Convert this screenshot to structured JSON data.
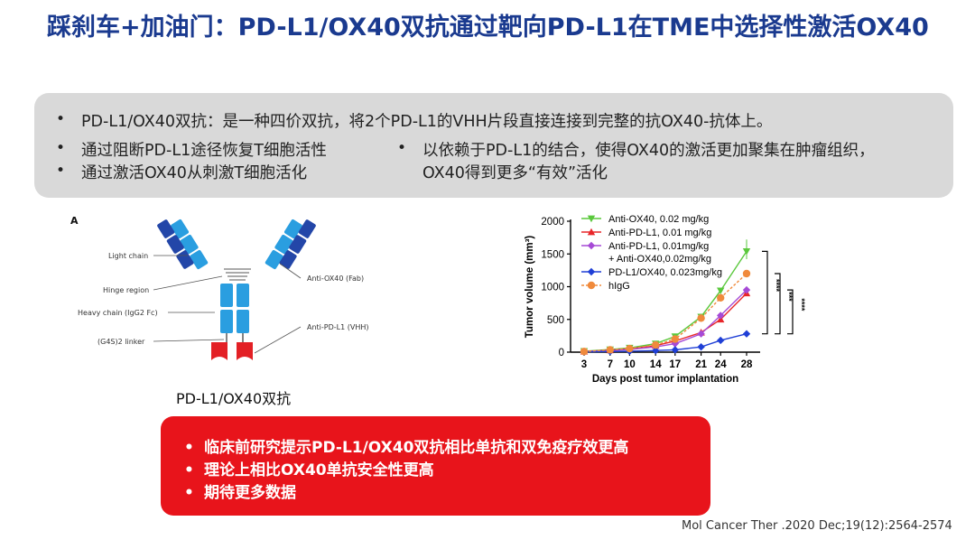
{
  "title": "踩刹车+加油门：PD-L1/OX40双抗通过靶向PD-L1在TME中选择性激活OX40",
  "summary": {
    "line1": "PD-L1/OX40双抗：是一种四价双抗，将2个PD-L1的VHH片段直接连接到完整的抗OX40-抗体上。",
    "left_points": [
      "通过阻断PD-L1途径恢复T细胞活性",
      "通过激活OX40从刺激T细胞活化"
    ],
    "right_point_line1": "以依赖于PD-L1的结合，使得OX40的激活更加聚集在肿瘤组织，",
    "right_point_line2": "OX40得到更多“有效”活化"
  },
  "antibody": {
    "panel_label": "A",
    "labels": {
      "light_chain": "Light chain",
      "hinge": "Hinge region",
      "heavy_chain": "Heavy chain (IgG2 Fc)",
      "linker": "(G4S)2 linker",
      "anti_ox40": "Anti-OX40 (Fab)",
      "anti_pdl1": "Anti-PD-L1 (VHH)"
    },
    "caption": "PD-L1/OX40双抗"
  },
  "conclusions": [
    "临床前研究提示PD-L1/OX40双抗相比单抗和双免疫疗效更高",
    "理论上相比OX40单抗安全性更高",
    "期待更多数据"
  ],
  "citation": "Mol Cancer Ther .2020 Dec;19(12):2564-2574",
  "chart_data": {
    "type": "line",
    "xlabel": "Days post tumor implantation",
    "ylabel": "Tumor volume (mm³)",
    "x": [
      3,
      7,
      10,
      14,
      17,
      21,
      24,
      28
    ],
    "ylim": [
      0,
      2000
    ],
    "yticks": [
      0,
      500,
      1000,
      1500,
      2000
    ],
    "significance": [
      "****",
      "***",
      "****"
    ],
    "series": [
      {
        "name": "Anti-OX40, 0.02 mg/kg",
        "color": "#5ac83c",
        "marker": "triangle-down",
        "dashed": false,
        "values": [
          15,
          40,
          65,
          130,
          240,
          540,
          940,
          1540
        ]
      },
      {
        "name": "Anti-PD-L1, 0.01 mg/kg",
        "color": "#e8262a",
        "marker": "triangle-up",
        "dashed": false,
        "values": [
          10,
          30,
          50,
          100,
          170,
          300,
          500,
          900
        ]
      },
      {
        "name": "Anti-PD-L1, 0.01mg/kg",
        "name2": "+ Anti-OX40,0.02mg/kg",
        "color": "#a64ad6",
        "marker": "diamond",
        "dashed": false,
        "values": [
          10,
          25,
          40,
          80,
          130,
          280,
          560,
          950
        ]
      },
      {
        "name": "PD-L1/OX40, 0.023mg/kg",
        "color": "#1f3fd6",
        "marker": "diamond",
        "dashed": false,
        "values": [
          5,
          10,
          15,
          25,
          35,
          80,
          180,
          280
        ]
      },
      {
        "name": "hIgG",
        "color": "#f08a3c",
        "marker": "circle",
        "dashed": true,
        "values": [
          10,
          35,
          55,
          110,
          200,
          520,
          830,
          1200
        ]
      }
    ]
  }
}
